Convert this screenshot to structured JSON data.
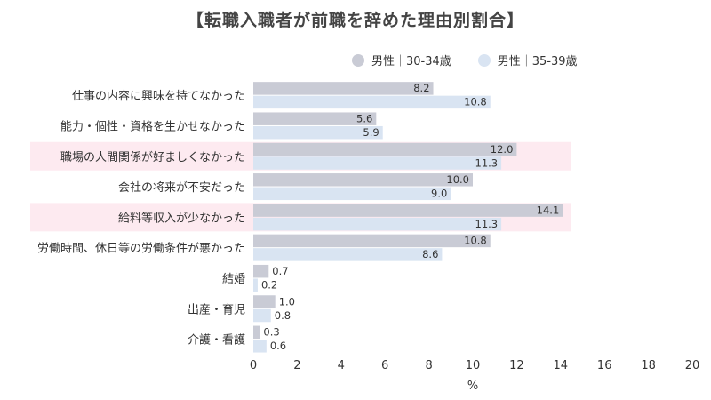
{
  "chart_data": {
    "type": "bar",
    "orientation": "horizontal",
    "title": "【転職入職者が前職を辞めた理由別割合】",
    "xlabel": "%",
    "xlim": [
      0,
      20
    ],
    "xticks": [
      0,
      2,
      4,
      6,
      8,
      10,
      12,
      14,
      16,
      18,
      20
    ],
    "legend_position": "top-right",
    "categories": [
      "仕事の内容に興味を持てなかった",
      "能力・個性・資格を生かせなかった",
      "職場の人間関係が好ましくなかった",
      "会社の将来が不安だった",
      "給料等収入が少なかった",
      "労働時間、休日等の労働条件が悪かった",
      "結婚",
      "出産・育児",
      "介護・看護"
    ],
    "highlighted_categories": [
      2,
      4
    ],
    "highlight_color": "#fdeaf0",
    "series": [
      {
        "name": "男性｜30-34歳",
        "color": "#c9cbd5",
        "values": [
          8.2,
          5.6,
          12.0,
          10.0,
          14.1,
          10.8,
          0.7,
          1.0,
          0.3
        ]
      },
      {
        "name": "男性｜35-39歳",
        "color": "#d9e4f2",
        "values": [
          10.8,
          5.9,
          11.3,
          9.0,
          11.3,
          8.6,
          0.2,
          0.8,
          0.6
        ]
      }
    ]
  }
}
